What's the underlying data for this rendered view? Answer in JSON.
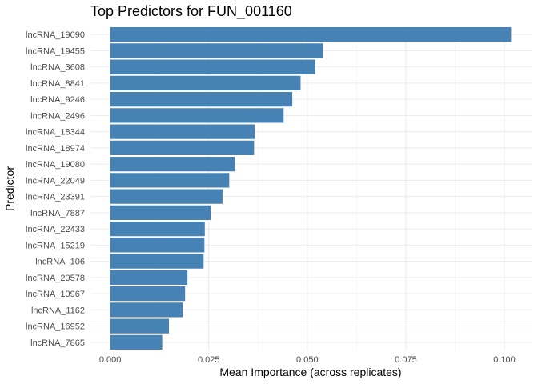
{
  "chart_data": {
    "type": "bar",
    "orientation": "horizontal",
    "title": "Top Predictors for FUN_001160",
    "xlabel": "Mean Importance (across replicates)",
    "ylabel": "Predictor",
    "categories": [
      "lncRNA_19090",
      "lncRNA_19455",
      "lncRNA_3608",
      "lncRNA_8841",
      "lncRNA_9246",
      "lncRNA_2496",
      "lncRNA_18344",
      "lncRNA_18974",
      "lncRNA_19080",
      "lncRNA_22049",
      "lncRNA_23391",
      "lncRNA_7887",
      "lncRNA_22433",
      "lncRNA_15219",
      "lncRNA_106",
      "lncRNA_20578",
      "lncRNA_10967",
      "lncRNA_1162",
      "lncRNA_16952",
      "lncRNA_7865"
    ],
    "values": [
      0.1017,
      0.054,
      0.052,
      0.0483,
      0.0462,
      0.044,
      0.0367,
      0.0365,
      0.0316,
      0.0302,
      0.0285,
      0.0255,
      0.024,
      0.0239,
      0.0237,
      0.0196,
      0.019,
      0.0184,
      0.0149,
      0.0132
    ],
    "xlim": [
      -0.005,
      0.1069
    ],
    "x_ticks": [
      0.0,
      0.025,
      0.05,
      0.075,
      0.1
    ],
    "x_tick_labels": [
      "0.000",
      "0.025",
      "0.050",
      "0.075",
      "0.100"
    ],
    "bar_color": "#4682B4",
    "grid": true,
    "legend": false
  }
}
